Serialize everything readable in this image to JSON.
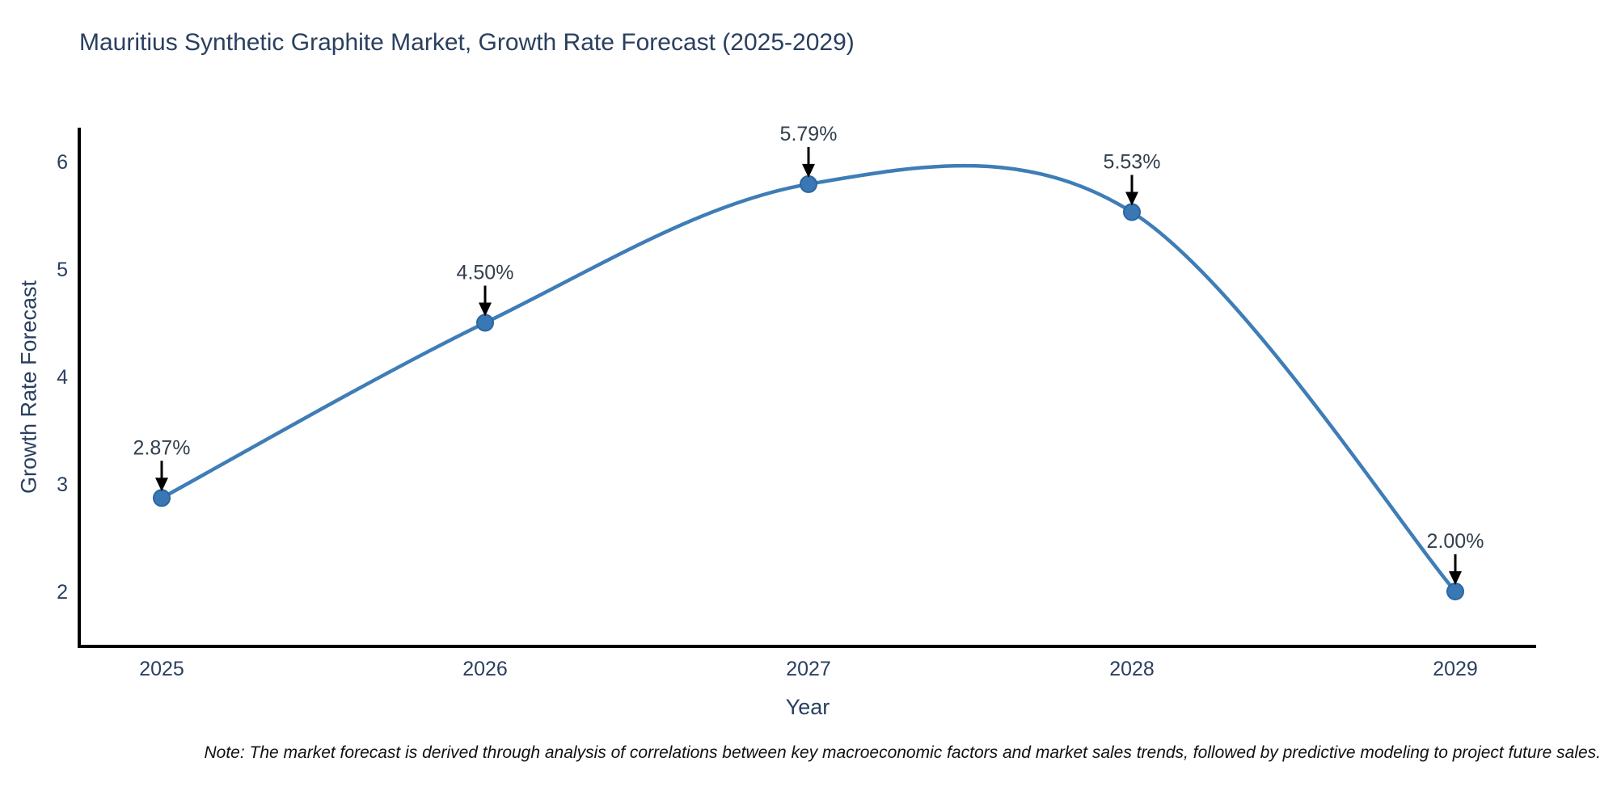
{
  "title": "Mauritius Synthetic Graphite Market, Growth Rate Forecast (2025-2029)",
  "note": "Note: The market forecast is derived through analysis of correlations between key macroeconomic factors and market sales trends, followed by predictive modeling to project future sales.",
  "chart_data": {
    "type": "line",
    "title": "Mauritius Synthetic Graphite Market, Growth Rate Forecast (2025-2029)",
    "xlabel": "Year",
    "ylabel": "Growth Rate Forecast",
    "categories": [
      "2025",
      "2026",
      "2027",
      "2028",
      "2029"
    ],
    "x": [
      2025,
      2026,
      2027,
      2028,
      2029
    ],
    "values": [
      2.87,
      4.5,
      5.79,
      5.53,
      2.0
    ],
    "point_labels": [
      "2.87%",
      "4.50%",
      "5.79%",
      "5.53%",
      "2.00%"
    ],
    "yticks": [
      2,
      3,
      4,
      5,
      6
    ],
    "ylim": [
      1.49,
      6.32
    ],
    "grid": false,
    "legend": "none",
    "line_shape": "spline",
    "colors": {
      "line": "#3e7db7",
      "marker_fill": "#3a78b5",
      "marker_edge": "#2c669f",
      "axis": "#000000",
      "tick_text": "#2a3f5f",
      "title_text": "#2a3f5f",
      "annotation_text": "#333f4d",
      "arrow": "#000000",
      "background": "#ffffff"
    }
  }
}
